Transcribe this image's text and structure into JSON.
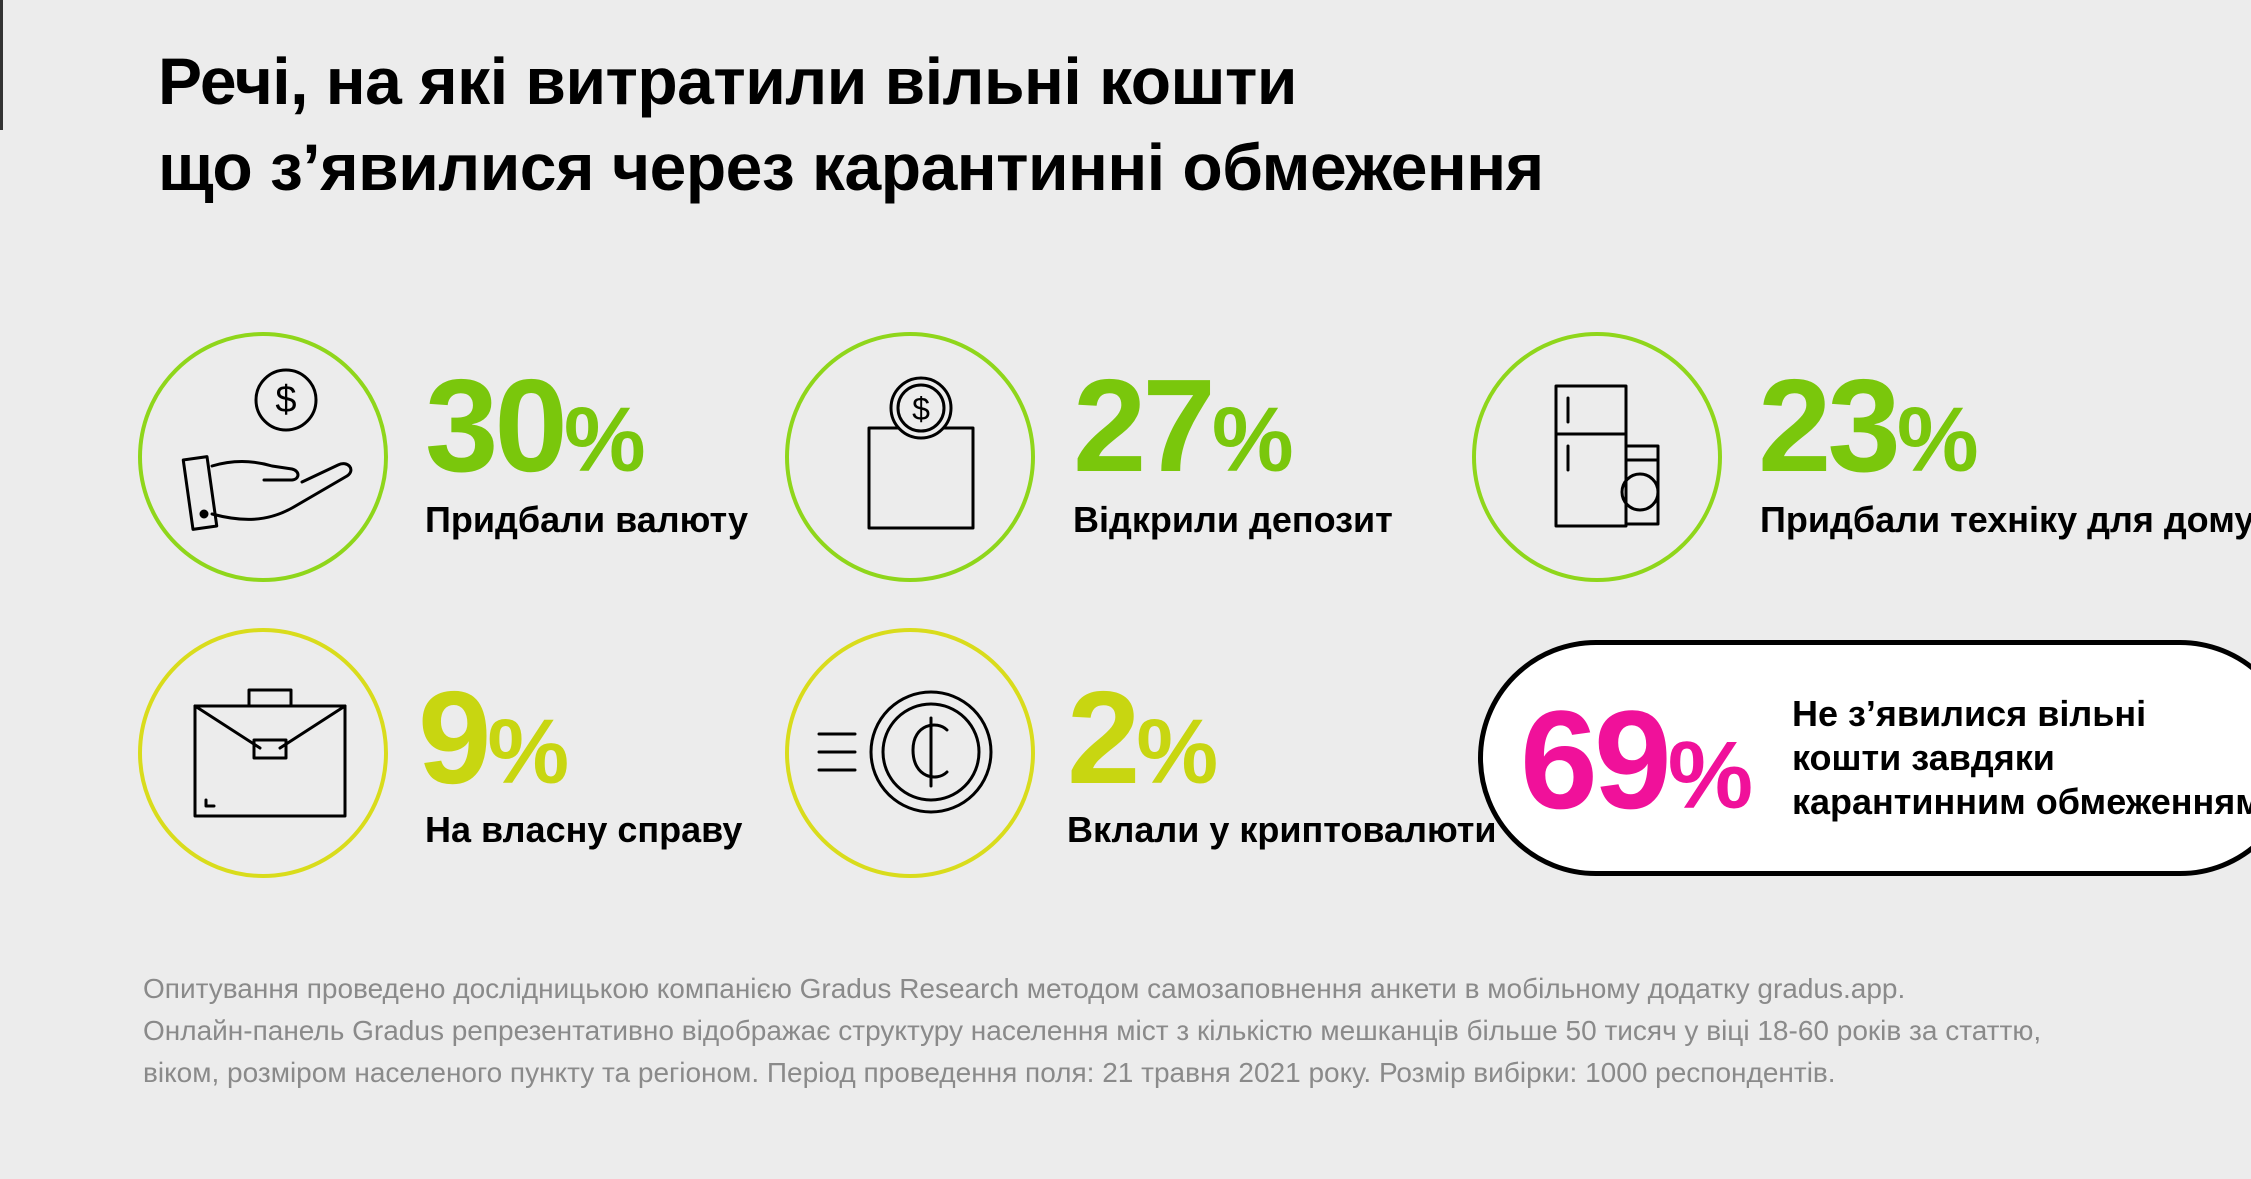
{
  "title": {
    "line1": "Речі, на які витратили вільні кошти",
    "line2": "що з’явилися через карантинні обмеження"
  },
  "colors": {
    "green": "#7ac70c",
    "yellow_green": "#c8d611",
    "pink": "#f0119a",
    "ring_green": "#8fd61b",
    "ring_yellow": "#d9dc1c"
  },
  "chart_data": {
    "type": "table",
    "title": "Речі, на які витратили вільні кошти, що з’явилися через карантинні обмеження",
    "items": [
      {
        "value": 30,
        "label": "Придбали валюту",
        "icon": "hand-coin-icon"
      },
      {
        "value": 27,
        "label": "Відкрили депозит",
        "icon": "deposit-box-icon"
      },
      {
        "value": 23,
        "label": "Придбали техніку для дому",
        "icon": "appliances-icon"
      },
      {
        "value": 9,
        "label": "На власну справу",
        "icon": "briefcase-icon"
      },
      {
        "value": 2,
        "label": "Вклали у криптовалюти",
        "icon": "crypto-coin-icon"
      }
    ],
    "highlight": {
      "value": 69,
      "label": "Не з’явилися вільні кошти завдяки карантинним обмеженням"
    }
  },
  "stats": [
    {
      "value": "30",
      "label": "Придбали валюту"
    },
    {
      "value": "27",
      "label": "Відкрили депозит"
    },
    {
      "value": "23",
      "label": "Придбали техніку для дому"
    },
    {
      "value": "9",
      "label": "На власну справу"
    },
    {
      "value": "2",
      "label": "Вклали у криптовалюти"
    }
  ],
  "percent_sign": "%",
  "highlight": {
    "value": "69",
    "lines": [
      "Не з’явилися вільні",
      "кошти завдяки",
      "карантинним обмеженням"
    ]
  },
  "footnote": {
    "line1": "Опитування проведено дослідницькою компанією Gradus  Research методом самозаповнення анкети в мобільному додатку gradus.app.",
    "line2": "Онлайн-панель Gradus репрезентативно відображає структуру населення міст з кількістю мешканців більше 50 тисяч у віці 18-60 років за статтю,",
    "line3": "віком, розміром населеного пункту та регіоном. Період проведення поля: 21 травня 2021 року. Розмір вибірки: 1000 респондентів."
  }
}
